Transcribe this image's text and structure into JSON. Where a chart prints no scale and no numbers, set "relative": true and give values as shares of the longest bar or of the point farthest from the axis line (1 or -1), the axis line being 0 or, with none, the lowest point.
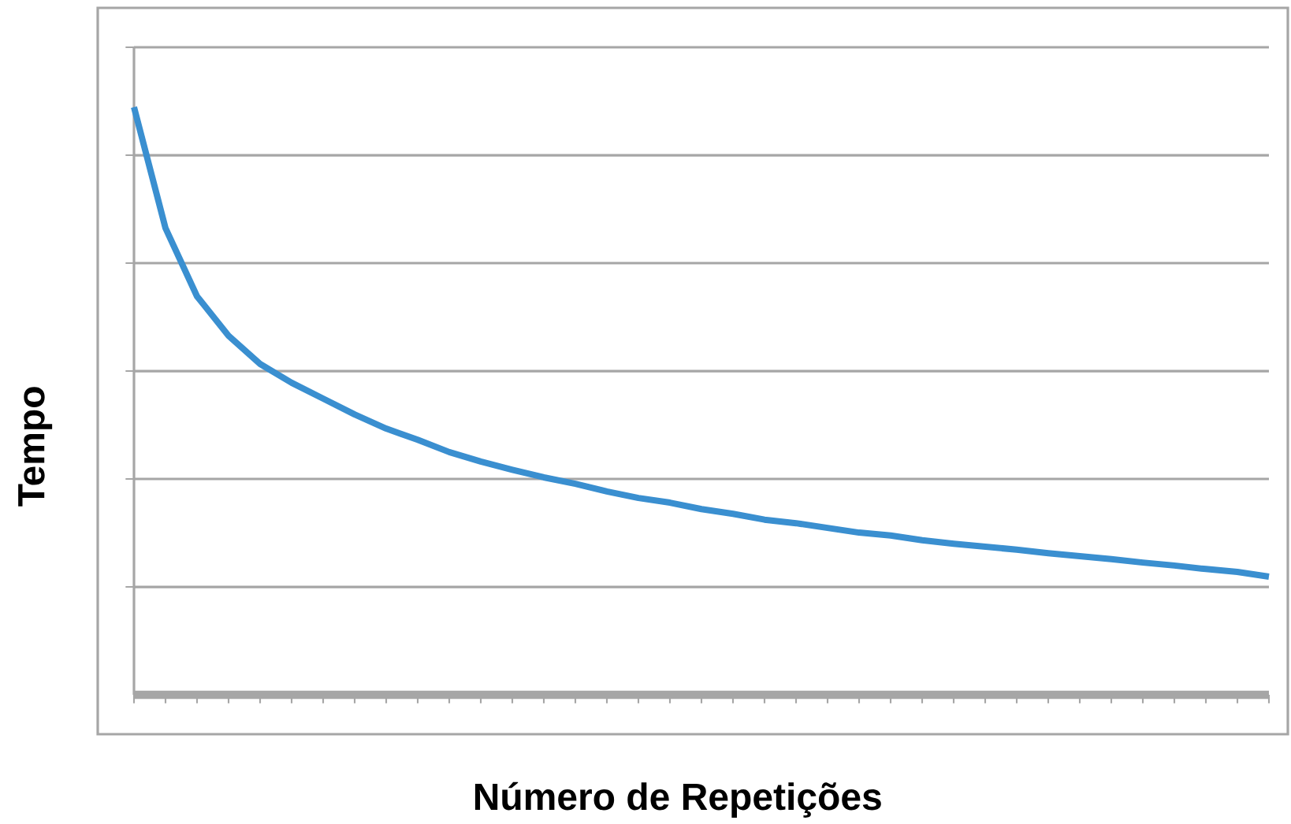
{
  "chart_data": {
    "type": "line",
    "xlabel": "Número de Repetições",
    "ylabel": "Tempo",
    "relative": true,
    "grid": "y",
    "color": "#3a8fd0",
    "categories": [
      null,
      null,
      null,
      null,
      null,
      null,
      null,
      null,
      null,
      null,
      null,
      null,
      null,
      null,
      null,
      null,
      null,
      null,
      null,
      null,
      null,
      null,
      null,
      null,
      null,
      null,
      null,
      null,
      null,
      null,
      null,
      null,
      null,
      null,
      null,
      null,
      null
    ],
    "values": [
      1.0,
      0.794,
      0.678,
      0.611,
      0.563,
      0.531,
      0.504,
      0.477,
      0.453,
      0.434,
      0.413,
      0.397,
      0.383,
      0.37,
      0.359,
      0.346,
      0.335,
      0.327,
      0.316,
      0.308,
      0.298,
      0.292,
      0.284,
      0.276,
      0.271,
      0.263,
      0.257,
      0.252,
      0.247,
      0.241,
      0.236,
      0.231,
      0.225,
      0.22,
      0.214,
      0.209,
      0.201
    ]
  }
}
